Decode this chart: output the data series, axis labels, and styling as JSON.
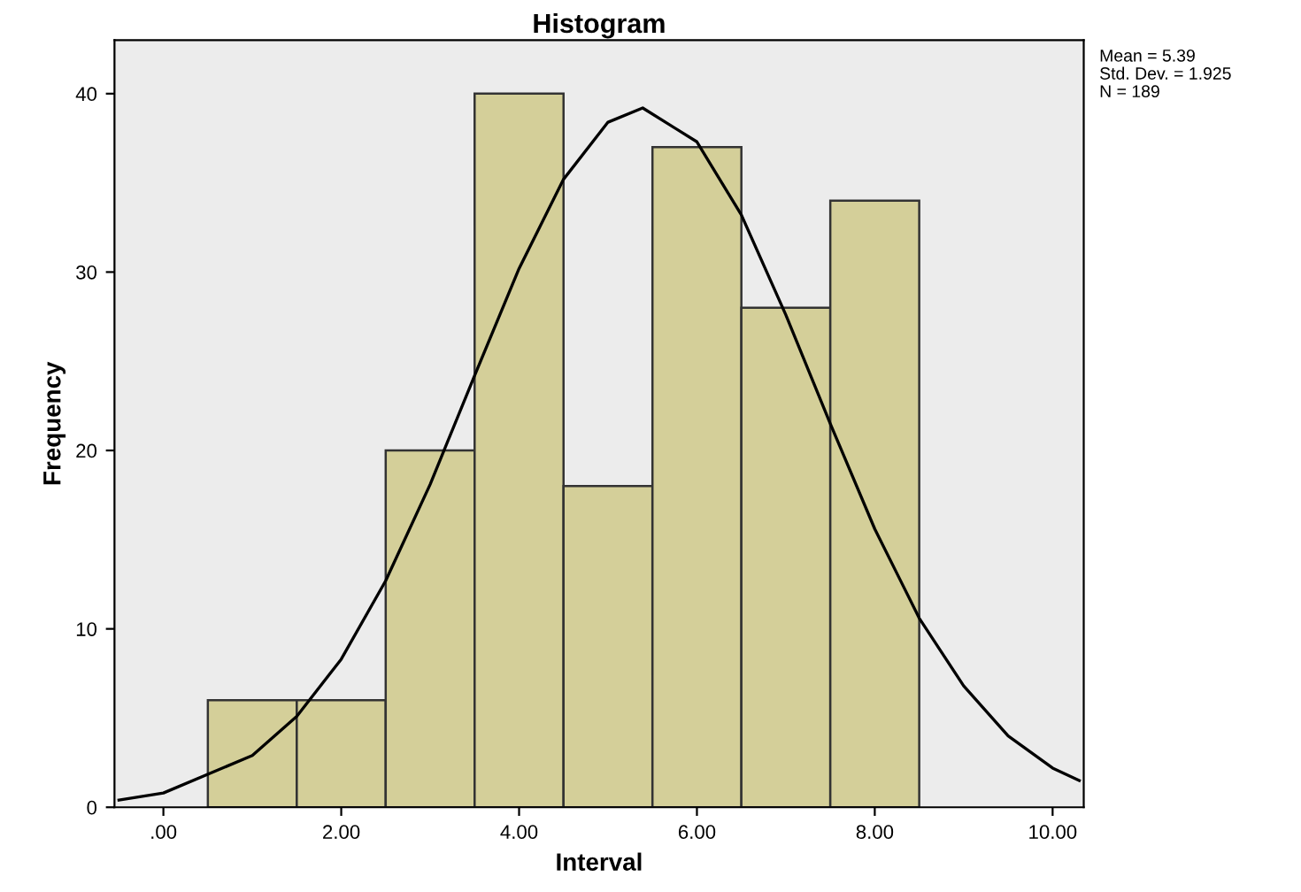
{
  "chart_data": {
    "type": "histogram",
    "title": "Histogram",
    "xlabel": "Interval",
    "ylabel": "Frequency",
    "bins": [
      0.5,
      1.5,
      2.5,
      3.5,
      4.5,
      5.5,
      6.5,
      7.5,
      8.5
    ],
    "values": [
      6,
      6,
      20,
      40,
      18,
      37,
      28,
      34
    ],
    "color": "#d4cf99",
    "series": [
      {
        "type": "line",
        "color": "#000000",
        "x": [
          -0.5,
          0,
          1,
          1.5,
          2,
          2.5,
          3,
          3.5,
          4,
          4.5,
          5,
          5.39,
          6,
          6.5,
          7,
          7.5,
          8,
          8.5,
          9,
          9.5,
          10,
          10.3
        ],
        "values": [
          0.4,
          0.8,
          2.9,
          5.1,
          8.3,
          12.7,
          18.1,
          24.2,
          30.2,
          35.2,
          38.4,
          39.2,
          37.3,
          33.2,
          27.6,
          21.5,
          15.6,
          10.6,
          6.8,
          4.0,
          2.2,
          1.5
        ]
      }
    ],
    "xlim": [
      -0.55,
      10.35
    ],
    "ylim": [
      0,
      43
    ],
    "xticks": [
      {
        "value": 0,
        "label": ".00"
      },
      {
        "value": 2,
        "label": "2.00"
      },
      {
        "value": 4,
        "label": "4.00"
      },
      {
        "value": 6,
        "label": "6.00"
      },
      {
        "value": 8,
        "label": "8.00"
      },
      {
        "value": 10,
        "label": "10.00"
      }
    ],
    "yticks": [
      0,
      10,
      20,
      30,
      40
    ],
    "grid": false,
    "annotations": [
      "Mean = 5.39",
      "Std. Dev. = 1.925",
      "N = 189"
    ]
  }
}
